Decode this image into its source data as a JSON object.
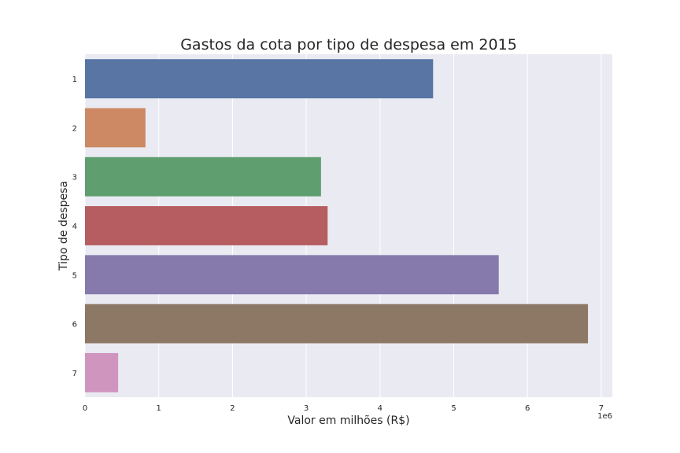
{
  "chart_data": {
    "type": "bar",
    "orientation": "horizontal",
    "title": "Gastos da cota por tipo de despesa em 2015",
    "xlabel": "Valor em milhões (R$)",
    "ylabel": "Tipo de despesa",
    "x_offset_label": "1e6",
    "xlim": [
      0,
      7150000
    ],
    "xticks": [
      0,
      1,
      2,
      3,
      4,
      5,
      6,
      7
    ],
    "categories": [
      "1",
      "2",
      "3",
      "4",
      "5",
      "6",
      "7"
    ],
    "values": [
      4720000,
      820000,
      3200000,
      3290000,
      5610000,
      6820000,
      450000
    ],
    "colors": [
      "#5875a4",
      "#cc8963",
      "#5f9e6e",
      "#b55d60",
      "#857aab",
      "#8d7866",
      "#d095bf"
    ],
    "background": "#eaeaf2",
    "grid": true,
    "legend": "none"
  }
}
